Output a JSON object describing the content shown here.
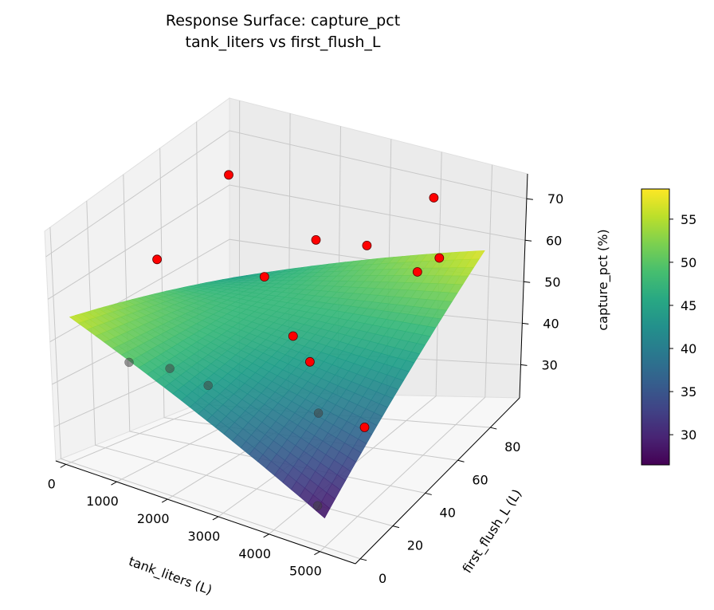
{
  "chart_data": {
    "type": "surface3d",
    "title": "Response Surface: capture_pct",
    "subtitle": "tank_liters vs first_flush_L",
    "xlabel": "tank_liters (L)",
    "ylabel": "first_flush_L (L)",
    "zlabel": "capture_pct (%)",
    "xlim": [
      -200,
      5700
    ],
    "ylim": [
      -3,
      98
    ],
    "zlim": [
      22,
      76
    ],
    "x_ticks": [
      0,
      1000,
      2000,
      3000,
      4000,
      5000
    ],
    "y_ticks": [
      0,
      20,
      40,
      60,
      80
    ],
    "z_ticks": [
      30,
      40,
      50,
      60,
      70
    ],
    "grid": true,
    "surface": {
      "colormap": "viridis",
      "corners": [
        {
          "x": 100,
          "y": 0,
          "z": 56
        },
        {
          "x": 5000,
          "y": 0,
          "z": 28
        },
        {
          "x": 100,
          "y": 95,
          "z": 44
        },
        {
          "x": 5000,
          "y": 95,
          "z": 57
        }
      ]
    },
    "colorbar": {
      "min": 26.5,
      "max": 58.5,
      "ticks": [
        30,
        35,
        40,
        45,
        50,
        55
      ]
    },
    "scatter_color": "#ff0000",
    "points": [
      {
        "x": 350,
        "y": 42,
        "z": 59
      },
      {
        "x": 1350,
        "y": 54,
        "z": 76
      },
      {
        "x": 1600,
        "y": 12,
        "z": 46
      },
      {
        "x": 2000,
        "y": 55,
        "z": 56
      },
      {
        "x": 2500,
        "y": 70,
        "z": 61
      },
      {
        "x": 2800,
        "y": 48,
        "z": 47
      },
      {
        "x": 3300,
        "y": 76,
        "z": 60
      },
      {
        "x": 4700,
        "y": 5,
        "z": 28
      },
      {
        "x": 5200,
        "y": 18,
        "z": 42
      },
      {
        "x": 4900,
        "y": 58,
        "z": 63
      },
      {
        "x": 4000,
        "y": 94,
        "z": 67
      },
      {
        "x": 3900,
        "y": 30,
        "z": 38
      },
      {
        "x": 1900,
        "y": 25,
        "z": 40
      },
      {
        "x": 3400,
        "y": 40,
        "z": 45
      },
      {
        "x": 4600,
        "y": 80,
        "z": 59
      },
      {
        "x": 700,
        "y": 15,
        "z": 44
      }
    ]
  }
}
